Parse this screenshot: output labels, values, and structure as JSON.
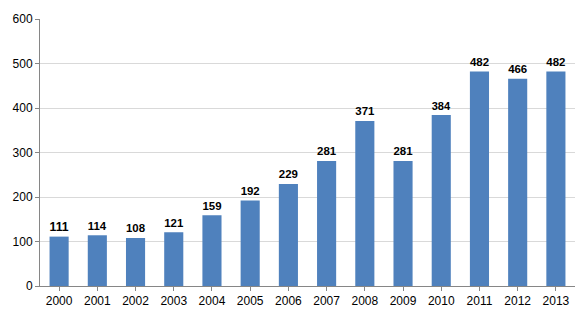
{
  "chart_data": {
    "type": "bar",
    "categories": [
      "2000",
      "2001",
      "2002",
      "2003",
      "2004",
      "2005",
      "2006",
      "2007",
      "2008",
      "2009",
      "2010",
      "2011",
      "2012",
      "2013"
    ],
    "values": [
      111,
      114,
      108,
      121,
      159,
      192,
      229,
      281,
      371,
      281,
      384,
      482,
      466,
      482
    ],
    "color": "#4f81bd",
    "ylim": [
      0,
      600
    ],
    "yticks": [
      0,
      100,
      200,
      300,
      400,
      500,
      600
    ],
    "grid": true,
    "data_labels": true
  }
}
